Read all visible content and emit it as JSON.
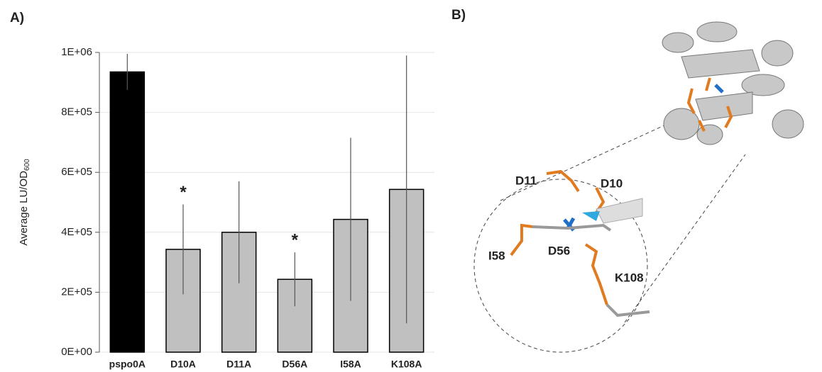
{
  "panel_labels": [
    "A)",
    "B)"
  ],
  "chart_data": {
    "type": "bar",
    "ylabel": "Average LU/OD",
    "ylabel_sub": "600",
    "categories": [
      "pspo0A",
      "D10A",
      "D11A",
      "D56A",
      "I58A",
      "K108A"
    ],
    "values": [
      935000,
      343000,
      400000,
      243000,
      443000,
      543000
    ],
    "errors": [
      60000,
      150000,
      170000,
      90000,
      272000,
      447000
    ],
    "colors": [
      "#000000",
      "#c0c0c0",
      "#c0c0c0",
      "#c0c0c0",
      "#c0c0c0",
      "#c0c0c0"
    ],
    "ylim": [
      0,
      1000000
    ],
    "yticks": [
      {
        "value": 0,
        "label": "0E+00"
      },
      {
        "value": 200000,
        "label": "2E+05"
      },
      {
        "value": 400000,
        "label": "4E+05"
      },
      {
        "value": 600000,
        "label": "6E+05"
      },
      {
        "value": 800000,
        "label": "8E+05"
      },
      {
        "value": 1000000,
        "label": "1E+06"
      }
    ],
    "grid": true,
    "annotations": [
      {
        "text": "*",
        "category_index": 1
      },
      {
        "text": "*",
        "category_index": 3
      }
    ]
  },
  "structure_labels": [
    "D11",
    "D10",
    "D56",
    "I58",
    "K108"
  ]
}
